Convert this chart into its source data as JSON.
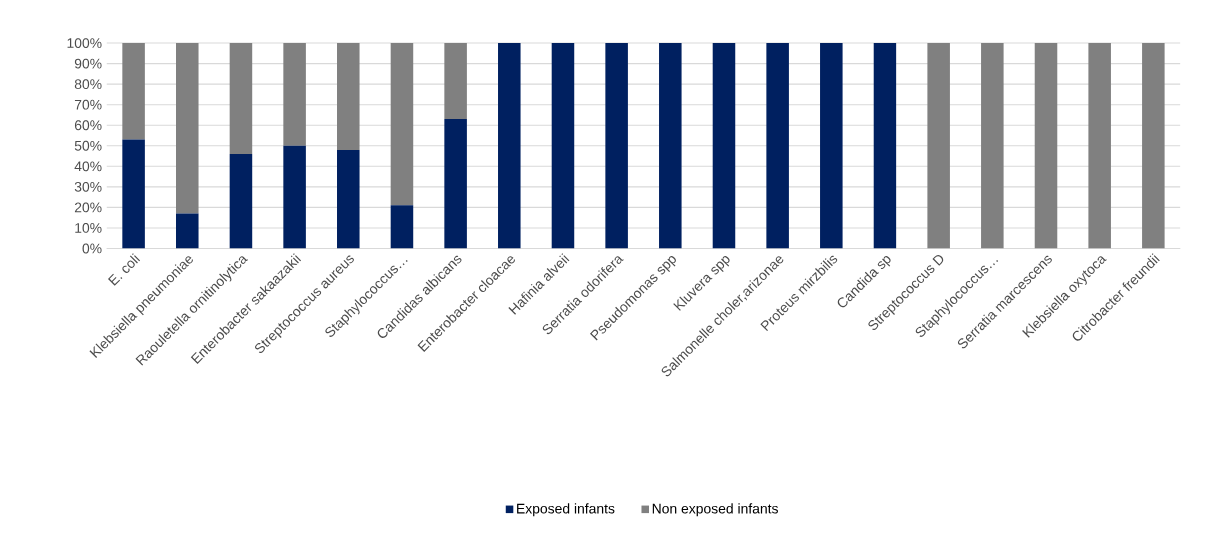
{
  "chart_data": {
    "type": "bar",
    "stacked": true,
    "categories": [
      "E. coli",
      "Klebsiella pneumoniae",
      "Raouletella ornitinolytica",
      "Enterobacter sakaazakii",
      "Streptococcus aureus",
      "Staphylococcus…",
      "Candidas albicans",
      "Enterobacter cloacae",
      "Hafinia alveii",
      "Serratia odorifera",
      "Pseudomonas spp",
      "Kluvera spp",
      "Salmonelle choler,arizonae",
      "Proteus mirzbilis",
      "Candida sp",
      "Streptococcus D",
      "Staphylococcus…",
      "Serratia marcescens",
      "Klebsiella oxytoca",
      "Citrobacter freundii"
    ],
    "series": [
      {
        "name": "Exposed infants",
        "color": "#002060",
        "values": [
          53,
          17,
          46,
          50,
          48,
          21,
          63,
          100,
          100,
          100,
          100,
          100,
          100,
          100,
          100,
          0,
          0,
          0,
          0,
          0
        ]
      },
      {
        "name": "Non exposed infants",
        "color": "#808080",
        "values": [
          47,
          83,
          54,
          50,
          52,
          79,
          37,
          0,
          0,
          0,
          0,
          0,
          0,
          0,
          0,
          100,
          100,
          100,
          100,
          100
        ]
      }
    ],
    "ylim": [
      0,
      100
    ],
    "yticks": [
      {
        "value": 0,
        "label": "0%"
      },
      {
        "value": 10,
        "label": "10%"
      },
      {
        "value": 20,
        "label": "20%"
      },
      {
        "value": 30,
        "label": "30%"
      },
      {
        "value": 40,
        "label": "40%"
      },
      {
        "value": 50,
        "label": "50%"
      },
      {
        "value": 60,
        "label": "60%"
      },
      {
        "value": 70,
        "label": "70%"
      },
      {
        "value": 80,
        "label": "80%"
      },
      {
        "value": 90,
        "label": "90%"
      },
      {
        "value": 100,
        "label": "100%"
      }
    ],
    "grid": "y",
    "legend": "bottom"
  }
}
